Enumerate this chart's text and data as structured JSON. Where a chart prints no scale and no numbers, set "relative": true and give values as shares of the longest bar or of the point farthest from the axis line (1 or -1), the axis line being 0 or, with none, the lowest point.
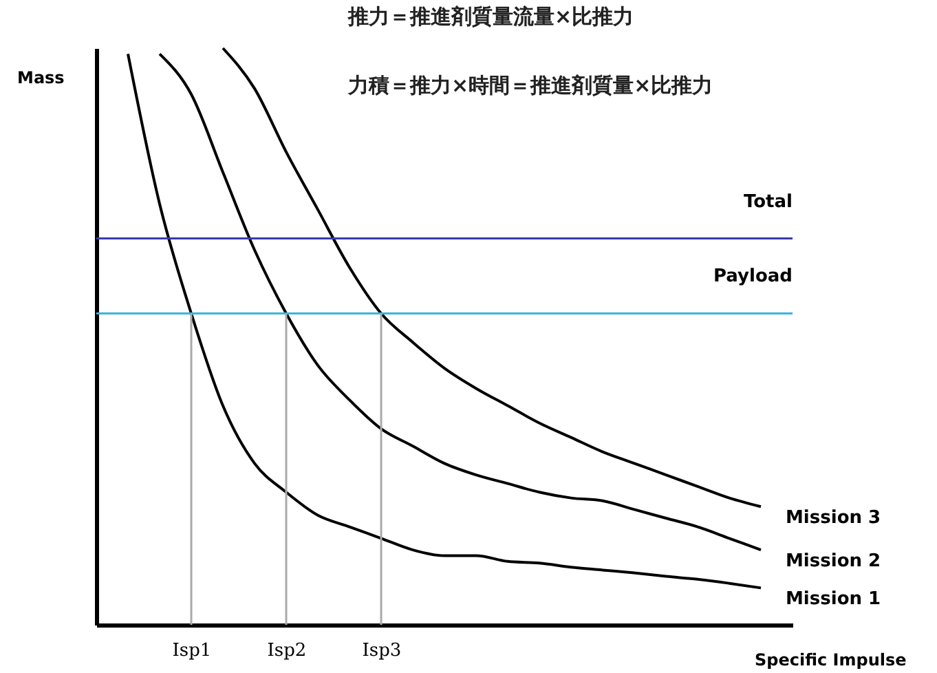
{
  "chart_data": {
    "type": "line",
    "relative": true,
    "xlabel": "Specific Impulse",
    "ylabel": "Mass",
    "annotations": [
      "推力＝推進剤質量流量×比推力",
      "力積＝推力×時間＝推進剤質量×比推力"
    ],
    "categories": [
      null,
      null,
      null,
      "Isp1",
      null,
      null,
      "Isp2",
      null,
      null,
      "Isp3",
      null,
      null,
      null,
      null,
      null,
      null,
      null,
      null,
      null,
      null,
      null,
      null,
      null
    ],
    "series": [
      {
        "name": "Mission 1",
        "color": "#000000",
        "values": [
          null,
          0.99,
          0.73,
          0.54,
          0.38,
          0.28,
          0.23,
          0.19,
          0.17,
          0.15,
          0.13,
          0.12,
          0.12,
          0.11,
          0.107,
          0.1,
          0.095,
          0.09,
          0.084,
          0.079,
          0.072,
          0.064,
          null
        ]
      },
      {
        "name": "Mission 2",
        "color": "#000000",
        "values": [
          null,
          null,
          0.99,
          0.92,
          0.785,
          0.65,
          0.54,
          0.45,
          0.39,
          0.34,
          0.31,
          0.28,
          0.26,
          0.245,
          0.23,
          0.22,
          0.215,
          0.2,
          0.185,
          0.17,
          0.15,
          0.13,
          null
        ]
      },
      {
        "name": "Mission 3",
        "color": "#000000",
        "values": [
          null,
          null,
          null,
          null,
          1.0,
          0.93,
          0.82,
          0.72,
          0.62,
          0.54,
          0.49,
          0.445,
          0.41,
          0.38,
          0.35,
          0.325,
          0.3,
          0.28,
          0.26,
          0.24,
          0.22,
          0.205,
          null
        ]
      }
    ],
    "ref_lines": [
      {
        "axis": "y",
        "value": 0.67,
        "label": "Total",
        "color": "#3a3aa8"
      },
      {
        "axis": "y",
        "value": 0.54,
        "label": "Payload",
        "color": "#38b4e0"
      },
      {
        "axis": "x",
        "value": "Isp1",
        "color": "#aaaaaa"
      },
      {
        "axis": "x",
        "value": "Isp2",
        "color": "#aaaaaa"
      },
      {
        "axis": "x",
        "value": "Isp3",
        "color": "#aaaaaa"
      }
    ],
    "grid": false,
    "marker": "none",
    "line_style": "solid"
  }
}
